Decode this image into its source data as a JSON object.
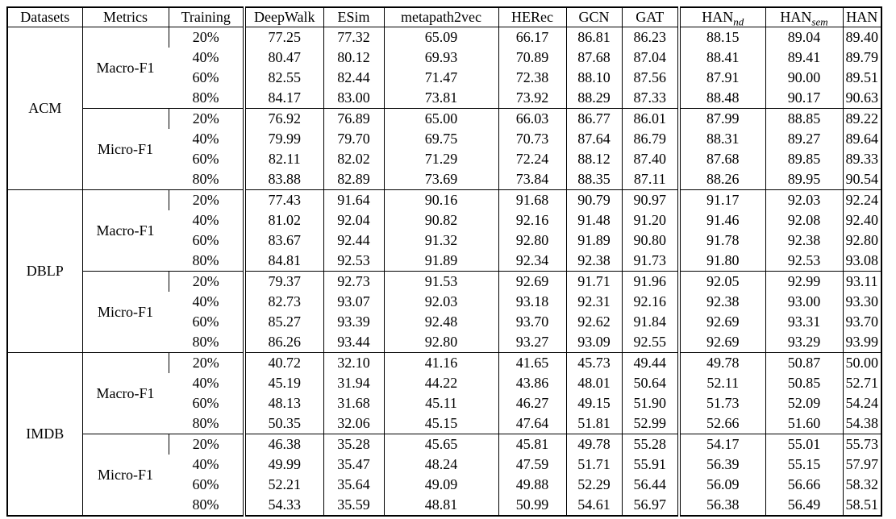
{
  "table": {
    "headers": {
      "datasets": "Datasets",
      "metrics": "Metrics",
      "training": "Training",
      "models": [
        "DeepWalk",
        "ESim",
        "metapath2vec",
        "HERec",
        "GCN",
        "GAT"
      ],
      "han_nd": {
        "base": "HAN",
        "sub": "nd"
      },
      "han_sem": {
        "base": "HAN",
        "sub": "sem"
      },
      "han": "HAN"
    },
    "groups": [
      {
        "dataset": "ACM",
        "metric": "Macro-F1",
        "rows": [
          {
            "training": "20%",
            "values": [
              "77.25",
              "77.32",
              "65.09",
              "66.17",
              "86.81",
              "86.23",
              "88.15",
              "89.04",
              "89.40"
            ],
            "bold": [
              8
            ]
          },
          {
            "training": "40%",
            "values": [
              "80.47",
              "80.12",
              "69.93",
              "70.89",
              "87.68",
              "87.04",
              "88.41",
              "89.41",
              "89.79"
            ],
            "bold": [
              8
            ]
          },
          {
            "training": "60%",
            "values": [
              "82.55",
              "82.44",
              "71.47",
              "72.38",
              "88.10",
              "87.56",
              "87.91",
              "90.00",
              "89.51"
            ],
            "bold": [
              7
            ]
          },
          {
            "training": "80%",
            "values": [
              "84.17",
              "83.00",
              "73.81",
              "73.92",
              "88.29",
              "87.33",
              "88.48",
              "90.17",
              "90.63"
            ],
            "bold": [
              8
            ]
          }
        ]
      },
      {
        "dataset": "ACM",
        "metric": "Micro-F1",
        "rows": [
          {
            "training": "20%",
            "values": [
              "76.92",
              "76.89",
              "65.00",
              "66.03",
              "86.77",
              "86.01",
              "87.99",
              "88.85",
              "89.22"
            ],
            "bold": [
              8
            ]
          },
          {
            "training": "40%",
            "values": [
              "79.99",
              "79.70",
              "69.75",
              "70.73",
              "87.64",
              "86.79",
              "88.31",
              "89.27",
              "89.64"
            ],
            "bold": [
              8
            ]
          },
          {
            "training": "60%",
            "values": [
              "82.11",
              "82.02",
              "71.29",
              "72.24",
              "88.12",
              "87.40",
              "87.68",
              "89.85",
              "89.33"
            ],
            "bold": [
              7
            ]
          },
          {
            "training": "80%",
            "values": [
              "83.88",
              "82.89",
              "73.69",
              "73.84",
              "88.35",
              "87.11",
              "88.26",
              "89.95",
              "90.54"
            ],
            "bold": [
              8
            ]
          }
        ]
      },
      {
        "dataset": "DBLP",
        "metric": "Macro-F1",
        "rows": [
          {
            "training": "20%",
            "values": [
              "77.43",
              "91.64",
              "90.16",
              "91.68",
              "90.79",
              "90.97",
              "91.17",
              "92.03",
              "92.24"
            ],
            "bold": [
              8
            ]
          },
          {
            "training": "40%",
            "values": [
              "81.02",
              "92.04",
              "90.82",
              "92.16",
              "91.48",
              "91.20",
              "91.46",
              "92.08",
              "92.40"
            ],
            "bold": [
              8
            ]
          },
          {
            "training": "60%",
            "values": [
              "83.67",
              "92.44",
              "91.32",
              "92.80",
              "91.89",
              "90.80",
              "91.78",
              "92.38",
              "92.80"
            ],
            "bold": [
              8
            ]
          },
          {
            "training": "80%",
            "values": [
              "84.81",
              "92.53",
              "91.89",
              "92.34",
              "92.38",
              "91.73",
              "91.80",
              "92.53",
              "93.08"
            ],
            "bold": [
              8
            ]
          }
        ]
      },
      {
        "dataset": "DBLP",
        "metric": "Micro-F1",
        "rows": [
          {
            "training": "20%",
            "values": [
              "79.37",
              "92.73",
              "91.53",
              "92.69",
              "91.71",
              "91.96",
              "92.05",
              "92.99",
              "93.11"
            ],
            "bold": [
              8
            ]
          },
          {
            "training": "40%",
            "values": [
              "82.73",
              "93.07",
              "92.03",
              "93.18",
              "92.31",
              "92.16",
              "92.38",
              "93.00",
              "93.30"
            ],
            "bold": [
              8
            ]
          },
          {
            "training": "60%",
            "values": [
              "85.27",
              "93.39",
              "92.48",
              "93.70",
              "92.62",
              "91.84",
              "92.69",
              "93.31",
              "93.70"
            ],
            "bold": [
              8
            ]
          },
          {
            "training": "80%",
            "values": [
              "86.26",
              "93.44",
              "92.80",
              "93.27",
              "93.09",
              "92.55",
              "92.69",
              "93.29",
              "93.99"
            ],
            "bold": [
              8
            ]
          }
        ]
      },
      {
        "dataset": "IMDB",
        "metric": "Macro-F1",
        "rows": [
          {
            "training": "20%",
            "values": [
              "40.72",
              "32.10",
              "41.16",
              "41.65",
              "45.73",
              "49.44",
              "49.78",
              "50.87",
              "50.00"
            ],
            "bold": [
              7
            ]
          },
          {
            "training": "40%",
            "values": [
              "45.19",
              "31.94",
              "44.22",
              "43.86",
              "48.01",
              "50.64",
              "52.11",
              "50.85",
              "52.71"
            ],
            "bold": [
              8
            ]
          },
          {
            "training": "60%",
            "values": [
              "48.13",
              "31.68",
              "45.11",
              "46.27",
              "49.15",
              "51.90",
              "51.73",
              "52.09",
              "54.24"
            ],
            "bold": [
              8
            ]
          },
          {
            "training": "80%",
            "values": [
              "50.35",
              "32.06",
              "45.15",
              "47.64",
              "51.81",
              "52.99",
              "52.66",
              "51.60",
              "54.38"
            ],
            "bold": [
              8
            ]
          }
        ]
      },
      {
        "dataset": "IMDB",
        "metric": "Micro-F1",
        "rows": [
          {
            "training": "20%",
            "values": [
              "46.38",
              "35.28",
              "45.65",
              "45.81",
              "49.78",
              "55.28",
              "54.17",
              "55.01",
              "55.73"
            ],
            "bold": [
              8
            ]
          },
          {
            "training": "40%",
            "values": [
              "49.99",
              "35.47",
              "48.24",
              "47.59",
              "51.71",
              "55.91",
              "56.39",
              "55.15",
              "57.97"
            ],
            "bold": [
              8
            ]
          },
          {
            "training": "60%",
            "values": [
              "52.21",
              "35.64",
              "49.09",
              "49.88",
              "52.29",
              "56.44",
              "56.09",
              "56.66",
              "58.32"
            ],
            "bold": [
              8
            ]
          },
          {
            "training": "80%",
            "values": [
              "54.33",
              "35.59",
              "48.81",
              "50.99",
              "54.61",
              "56.97",
              "56.38",
              "56.49",
              "58.51"
            ],
            "bold": [
              8
            ]
          }
        ]
      }
    ],
    "colors": {
      "text": "#000000",
      "background": "#ffffff",
      "rule": "#000000"
    }
  }
}
